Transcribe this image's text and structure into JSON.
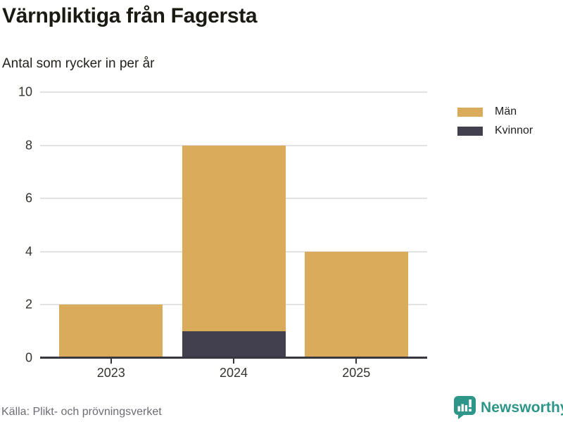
{
  "header": {
    "title": "Värnpliktiga från Fagersta",
    "subtitle": "Antal som rycker in per år"
  },
  "chart_data": {
    "type": "bar",
    "stacked": true,
    "title": "Värnpliktiga från Fagersta",
    "subtitle": "Antal som rycker in per år",
    "categories": [
      "2023",
      "2024",
      "2025"
    ],
    "series": [
      {
        "name": "Män",
        "color": "#d9ab5b",
        "values": [
          2,
          7,
          4
        ]
      },
      {
        "name": "Kvinnor",
        "color": "#423f4e",
        "values": [
          0,
          1,
          0
        ]
      }
    ],
    "stack_order_bottom_to_top": [
      "Kvinnor",
      "Män"
    ],
    "totals_by_year": [
      2,
      8,
      4
    ],
    "xlabel": "",
    "ylabel": "",
    "ylim": [
      0,
      10
    ],
    "yticks": [
      0,
      2,
      4,
      6,
      8,
      10
    ],
    "grid": "horizontal",
    "legend_position": "top-right"
  },
  "footer": {
    "source": "Källa: Plikt- och prövningsverket",
    "brand": "Newsworthy"
  },
  "colors": {
    "bar_men": "#d9ab5b",
    "bar_women": "#423f4e",
    "brand_teal": "#2e9589",
    "gridline": "#e2e2e2",
    "axis": "#38363f",
    "text_dark": "#1b1a12",
    "text_muted": "#6c6c75"
  }
}
